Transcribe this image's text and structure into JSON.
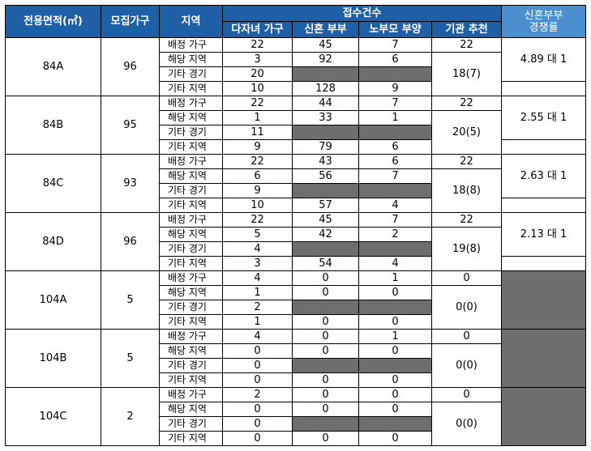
{
  "header": {
    "area": "전용면적(㎡)",
    "units": "모집가구",
    "region": "지역",
    "applications": "접수건수",
    "rate": [
      "신혼부부",
      "경쟁률"
    ],
    "sub": [
      "다자녀 가구",
      "신혼 부부",
      "노부모 부양",
      "기관 추천"
    ]
  },
  "groups": [
    {
      "area": "84A",
      "units": 96,
      "rows": [
        {
          "region": "배정 가구",
          "values": [
            22,
            45,
            7
          ]
        },
        {
          "region": "해당 지역",
          "values": [
            3,
            92,
            6
          ]
        },
        {
          "region": "기타 경기",
          "values": [
            20
          ]
        },
        {
          "region": "기타 지역",
          "values": [
            10,
            128,
            9
          ]
        }
      ],
      "agency": [
        22,
        "18(7)"
      ],
      "rate": "4.89 대 1"
    },
    {
      "area": "84B",
      "units": 95,
      "rows": [
        {
          "region": "배정 가구",
          "values": [
            22,
            44,
            7
          ]
        },
        {
          "region": "해당 지역",
          "values": [
            1,
            33,
            1
          ]
        },
        {
          "region": "기타 경기",
          "values": [
            11
          ]
        },
        {
          "region": "기타 지역",
          "values": [
            9,
            79,
            6
          ]
        }
      ],
      "agency": [
        22,
        "20(5)"
      ],
      "rate": "2.55 대 1"
    },
    {
      "area": "84C",
      "units": 93,
      "rows": [
        {
          "region": "배정 가구",
          "values": [
            22,
            43,
            6
          ]
        },
        {
          "region": "해당 지역",
          "values": [
            6,
            56,
            7
          ]
        },
        {
          "region": "기타 경기",
          "values": [
            9
          ]
        },
        {
          "region": "기타 지역",
          "values": [
            10,
            57,
            4
          ]
        }
      ],
      "agency": [
        22,
        "18(8)"
      ],
      "rate": "2.63 대 1"
    },
    {
      "area": "84D",
      "units": 96,
      "rows": [
        {
          "region": "배정 가구",
          "values": [
            22,
            45,
            7
          ]
        },
        {
          "region": "해당 지역",
          "values": [
            5,
            42,
            2
          ]
        },
        {
          "region": "기타 경기",
          "values": [
            4
          ]
        },
        {
          "region": "기타 지역",
          "values": [
            3,
            54,
            4
          ]
        }
      ],
      "agency": [
        22,
        "19(8)"
      ],
      "rate": "2.13 대 1"
    },
    {
      "area": "104A",
      "units": 5,
      "rows": [
        {
          "region": "배정 가구",
          "values": [
            4,
            0,
            1
          ]
        },
        {
          "region": "해당 지역",
          "values": [
            1,
            0,
            0
          ]
        },
        {
          "region": "기타 경기",
          "values": [
            2
          ]
        },
        {
          "region": "기타 지역",
          "values": [
            1,
            0,
            0
          ]
        }
      ],
      "agency": [
        0,
        "0(0)"
      ]
    },
    {
      "area": "104B",
      "units": 5,
      "rows": [
        {
          "region": "배정 가구",
          "values": [
            4,
            0,
            1
          ]
        },
        {
          "region": "해당 지역",
          "values": [
            0,
            0,
            0
          ]
        },
        {
          "region": "기타 경기",
          "values": [
            0
          ]
        },
        {
          "region": "기타 지역",
          "values": [
            0,
            0,
            0
          ]
        }
      ],
      "agency": [
        0,
        "0(0)"
      ]
    },
    {
      "area": "104C",
      "units": 2,
      "rows": [
        {
          "region": "배정 가구",
          "values": [
            2,
            0,
            0
          ]
        },
        {
          "region": "해당 지역",
          "values": [
            0,
            0,
            0
          ]
        },
        {
          "region": "기타 경기",
          "values": [
            0
          ]
        },
        {
          "region": "기타 지역",
          "values": [
            0,
            0,
            0
          ]
        }
      ],
      "agency": [
        0,
        "0(0)"
      ]
    }
  ]
}
